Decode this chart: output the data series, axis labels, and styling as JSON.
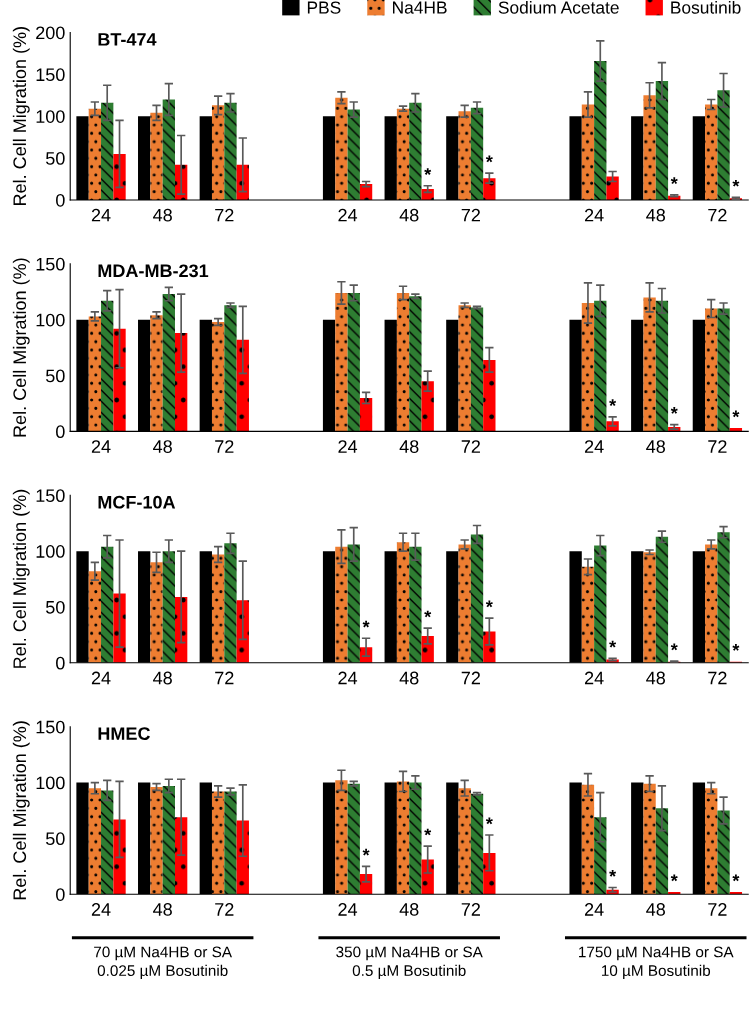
{
  "chart_data": [
    {
      "type": "bar",
      "title": "BT-474",
      "ylabel": "Rel. Cell Migration (%)",
      "categories": [
        "24",
        "48",
        "72",
        null,
        "24",
        "48",
        "72",
        null,
        "24",
        "48",
        "72"
      ],
      "ylim": [
        0,
        200
      ],
      "yticks": [
        0,
        50,
        100,
        150,
        200
      ],
      "legend": "top right",
      "series": [
        {
          "name": "PBS",
          "color": "#000000",
          "values": [
            100,
            100,
            100,
            null,
            100,
            100,
            100,
            null,
            100,
            100,
            100
          ]
        },
        {
          "name": "Na4HB",
          "color": "#ed7d31",
          "values": [
            109,
            104,
            113,
            null,
            122,
            109,
            106,
            null,
            114,
            125,
            114
          ],
          "errors": [
            8,
            9,
            11,
            null,
            7,
            3,
            7,
            null,
            15,
            15,
            6
          ]
        },
        {
          "name": "Sodium Acetate",
          "color": "#2e7d32",
          "values": [
            116,
            120,
            116,
            null,
            108,
            116,
            110,
            null,
            166,
            142,
            131
          ],
          "errors": [
            21,
            19,
            11,
            null,
            9,
            11,
            7,
            null,
            24,
            22,
            20
          ]
        },
        {
          "name": "Bosutinib",
          "color": "#ff0000",
          "values": [
            55,
            42,
            42,
            null,
            19,
            13,
            26,
            null,
            28,
            5,
            2
          ],
          "errors": [
            40,
            35,
            32,
            null,
            3,
            4,
            6,
            null,
            6,
            1,
            1
          ],
          "value_labels": [
            null,
            null,
            null,
            null,
            null,
            "*",
            "*",
            null,
            null,
            "*",
            "*"
          ]
        }
      ]
    },
    {
      "type": "bar",
      "title": "MDA-MB-231",
      "ylabel": "Rel. Cell Migration (%)",
      "categories": [
        "24",
        "48",
        "72",
        null,
        "24",
        "48",
        "72",
        null,
        "24",
        "48",
        "72"
      ],
      "ylim": [
        0,
        150
      ],
      "yticks": [
        0,
        50,
        100,
        150
      ],
      "series": [
        {
          "color": "#000000",
          "values": [
            100,
            100,
            100,
            null,
            100,
            100,
            100,
            null,
            100,
            100,
            100
          ]
        },
        {
          "color": "#ed7d31",
          "values": [
            103,
            104,
            98,
            null,
            124,
            124,
            113,
            null,
            115,
            120,
            110
          ],
          "errors": [
            4,
            3,
            3,
            null,
            10,
            6,
            2,
            null,
            18,
            13,
            8
          ]
        },
        {
          "color": "#2e7d32",
          "values": [
            117,
            123,
            113,
            null,
            124,
            121,
            111,
            null,
            117,
            117,
            110
          ],
          "errors": [
            9,
            6,
            2,
            null,
            7,
            2,
            1,
            null,
            14,
            11,
            5
          ]
        },
        {
          "color": "#ff0000",
          "values": [
            92,
            88,
            82,
            null,
            30,
            45,
            64,
            null,
            9,
            4,
            3
          ],
          "errors": [
            35,
            35,
            30,
            null,
            5,
            9,
            11,
            null,
            4,
            2,
            null
          ],
          "value_labels": [
            null,
            null,
            null,
            null,
            null,
            null,
            null,
            null,
            "*",
            "*",
            "*"
          ]
        }
      ]
    },
    {
      "type": "bar",
      "title": "MCF-10A",
      "ylabel": "Rel. Cell Migration (%)",
      "categories": [
        "24",
        "48",
        "72",
        null,
        "24",
        "48",
        "72",
        null,
        "24",
        "48",
        "72"
      ],
      "ylim": [
        0,
        150
      ],
      "yticks": [
        0,
        50,
        100,
        150
      ],
      "series": [
        {
          "color": "#000000",
          "values": [
            100,
            100,
            100,
            null,
            100,
            100,
            100,
            null,
            100,
            100,
            100
          ]
        },
        {
          "color": "#ed7d31",
          "values": [
            82,
            90,
            97,
            null,
            104,
            108,
            106,
            null,
            86,
            99,
            106
          ],
          "errors": [
            8,
            9,
            7,
            null,
            15,
            8,
            4,
            null,
            7,
            2,
            4
          ]
        },
        {
          "color": "#2e7d32",
          "values": [
            104,
            100,
            107,
            null,
            106,
            104,
            115,
            null,
            105,
            113,
            117
          ],
          "errors": [
            10,
            10,
            9,
            null,
            15,
            12,
            8,
            null,
            9,
            5,
            5
          ]
        },
        {
          "color": "#ff0000",
          "values": [
            62,
            59,
            56,
            null,
            14,
            24,
            28,
            null,
            3,
            1,
            1
          ],
          "errors": [
            48,
            41,
            35,
            null,
            8,
            7,
            12,
            null,
            1,
            0.5,
            null
          ],
          "value_labels": [
            null,
            null,
            null,
            null,
            "*",
            "*",
            "*",
            null,
            "*",
            "*",
            "*"
          ]
        }
      ]
    },
    {
      "type": "bar",
      "title": "HMEC",
      "ylabel": "Rel. Cell Migration (%)",
      "categories": [
        "24",
        "48",
        "72",
        null,
        "24",
        "48",
        "72",
        null,
        "24",
        "48",
        "72"
      ],
      "ylim": [
        0,
        150
      ],
      "yticks": [
        0,
        50,
        100,
        150
      ],
      "annotations": [
        "70 µM Na4HB or SA\n0.025 µM Bosutinib",
        "350 µM Na4HB or SA\n0.5 µM Bosutinib",
        "1750 µM Na4HB or SA\n10 µM Bosutinib"
      ],
      "series": [
        {
          "color": "#000000",
          "values": [
            100,
            100,
            100,
            null,
            100,
            100,
            100,
            null,
            100,
            100,
            100
          ]
        },
        {
          "color": "#ed7d31",
          "values": [
            95,
            96,
            92,
            null,
            102,
            101,
            95,
            null,
            98,
            99,
            95
          ],
          "errors": [
            5,
            3,
            5,
            null,
            9,
            9,
            7,
            null,
            10,
            7,
            5
          ]
        },
        {
          "color": "#2e7d32",
          "values": [
            93,
            97,
            92,
            null,
            99,
            100,
            90,
            null,
            69,
            77,
            75
          ],
          "errors": [
            9,
            6,
            3,
            null,
            2,
            6,
            1,
            null,
            22,
            20,
            12
          ]
        },
        {
          "color": "#ff0000",
          "values": [
            67,
            69,
            66,
            null,
            18,
            31,
            37,
            null,
            4,
            2,
            2
          ],
          "errors": [
            34,
            34,
            32,
            null,
            7,
            12,
            16,
            null,
            2,
            null,
            null
          ],
          "value_labels": [
            null,
            null,
            null,
            null,
            "*",
            "*",
            "*",
            null,
            "*",
            "*",
            "*"
          ]
        }
      ]
    }
  ]
}
